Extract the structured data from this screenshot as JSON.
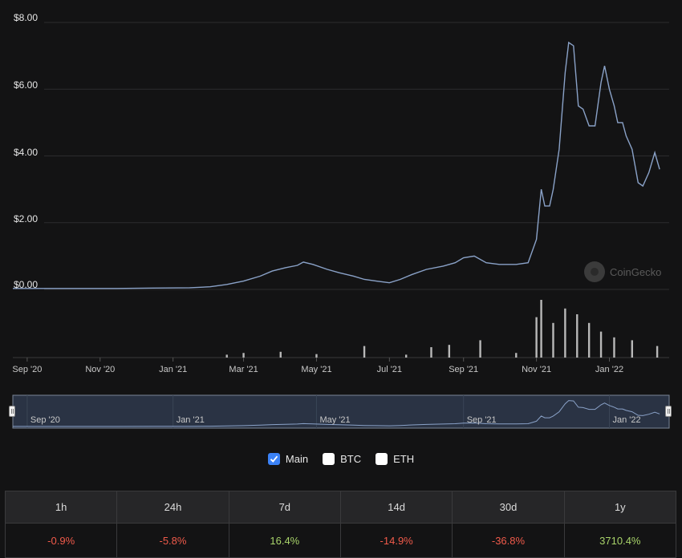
{
  "chart_data": {
    "type": "line",
    "title": "",
    "xlabel": "",
    "ylabel": "",
    "y_ticks": [
      "$8.00",
      "$6.00",
      "$4.00",
      "$2.00",
      "$0.00"
    ],
    "ylim": [
      0,
      8
    ],
    "x_ticks": [
      "Sep '20",
      "Nov '20",
      "Jan '21",
      "Mar '21",
      "May '21",
      "Jul '21",
      "Sep '21",
      "Nov '21",
      "Jan '22"
    ],
    "x_range": [
      "2020-08-20",
      "2022-02-20"
    ],
    "series": [
      {
        "values": [
          [
            "2020-08-20",
            0.03
          ],
          [
            "2020-09-15",
            0.03
          ],
          [
            "2020-10-15",
            0.03
          ],
          [
            "2020-11-15",
            0.03
          ],
          [
            "2020-12-15",
            0.04
          ],
          [
            "2021-01-15",
            0.05
          ],
          [
            "2021-02-01",
            0.08
          ],
          [
            "2021-02-15",
            0.15
          ],
          [
            "2021-03-01",
            0.25
          ],
          [
            "2021-03-15",
            0.4
          ],
          [
            "2021-03-25",
            0.55
          ],
          [
            "2021-04-05",
            0.65
          ],
          [
            "2021-04-15",
            0.72
          ],
          [
            "2021-04-20",
            0.82
          ],
          [
            "2021-04-28",
            0.75
          ],
          [
            "2021-05-10",
            0.6
          ],
          [
            "2021-05-20",
            0.5
          ],
          [
            "2021-06-01",
            0.4
          ],
          [
            "2021-06-10",
            0.3
          ],
          [
            "2021-06-20",
            0.25
          ],
          [
            "2021-07-01",
            0.2
          ],
          [
            "2021-07-10",
            0.3
          ],
          [
            "2021-07-20",
            0.45
          ],
          [
            "2021-08-01",
            0.6
          ],
          [
            "2021-08-15",
            0.7
          ],
          [
            "2021-08-25",
            0.8
          ],
          [
            "2021-09-01",
            0.95
          ],
          [
            "2021-09-10",
            1.0
          ],
          [
            "2021-09-20",
            0.8
          ],
          [
            "2021-10-01",
            0.75
          ],
          [
            "2021-10-15",
            0.75
          ],
          [
            "2021-10-25",
            0.8
          ],
          [
            "2021-11-01",
            1.5
          ],
          [
            "2021-11-05",
            3.0
          ],
          [
            "2021-11-08",
            2.5
          ],
          [
            "2021-11-12",
            2.5
          ],
          [
            "2021-11-15",
            3.0
          ],
          [
            "2021-11-20",
            4.2
          ],
          [
            "2021-11-25",
            6.5
          ],
          [
            "2021-11-28",
            7.4
          ],
          [
            "2021-12-02",
            7.3
          ],
          [
            "2021-12-06",
            5.5
          ],
          [
            "2021-12-10",
            5.4
          ],
          [
            "2021-12-15",
            4.9
          ],
          [
            "2021-12-20",
            4.9
          ],
          [
            "2021-12-25",
            6.2
          ],
          [
            "2021-12-28",
            6.7
          ],
          [
            "2022-01-01",
            6.0
          ],
          [
            "2022-01-05",
            5.5
          ],
          [
            "2022-01-08",
            5.0
          ],
          [
            "2022-01-12",
            5.0
          ],
          [
            "2022-01-15",
            4.6
          ],
          [
            "2022-01-20",
            4.2
          ],
          [
            "2022-01-25",
            3.2
          ],
          [
            "2022-01-29",
            3.1
          ],
          [
            "2022-02-03",
            3.5
          ],
          [
            "2022-02-08",
            4.1
          ],
          [
            "2022-02-12",
            3.6
          ]
        ]
      }
    ],
    "volume": {
      "approximate_relative_heights": [
        [
          "2021-02-15",
          0.05
        ],
        [
          "2021-03-01",
          0.08
        ],
        [
          "2021-04-01",
          0.1
        ],
        [
          "2021-05-01",
          0.06
        ],
        [
          "2021-06-10",
          0.2
        ],
        [
          "2021-07-15",
          0.05
        ],
        [
          "2021-08-05",
          0.18
        ],
        [
          "2021-08-20",
          0.22
        ],
        [
          "2021-09-15",
          0.3
        ],
        [
          "2021-10-15",
          0.08
        ],
        [
          "2021-11-01",
          0.7
        ],
        [
          "2021-11-05",
          1.0
        ],
        [
          "2021-11-15",
          0.6
        ],
        [
          "2021-11-25",
          0.85
        ],
        [
          "2021-12-05",
          0.75
        ],
        [
          "2021-12-15",
          0.6
        ],
        [
          "2021-12-25",
          0.45
        ],
        [
          "2022-01-05",
          0.35
        ],
        [
          "2022-01-20",
          0.3
        ],
        [
          "2022-02-10",
          0.2
        ]
      ]
    },
    "navigator_ticks": [
      "Sep '20",
      "Jan '21",
      "May '21",
      "Sep '21",
      "Jan '22"
    ],
    "watermark": "CoinGecko",
    "colors": {
      "line": "#8aa2c8",
      "volume": "#b8b8b8",
      "navigator_bg": "#2a3344",
      "grid": "#2c2c2e"
    }
  },
  "legend": [
    {
      "label": "Main",
      "checked": true
    },
    {
      "label": "BTC",
      "checked": false
    },
    {
      "label": "ETH",
      "checked": false
    }
  ],
  "performance": {
    "headers": [
      "1h",
      "24h",
      "7d",
      "14d",
      "30d",
      "1y"
    ],
    "values": [
      "-0.9%",
      "-5.8%",
      "16.4%",
      "-14.9%",
      "-36.8%",
      "3710.4%"
    ],
    "colors": {
      "negative": "#f05a4a",
      "positive": "#a8d36a"
    }
  }
}
